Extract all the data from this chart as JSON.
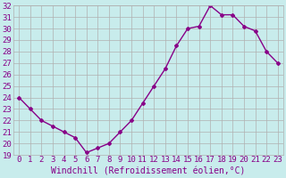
{
  "x": [
    0,
    1,
    2,
    3,
    4,
    5,
    6,
    7,
    8,
    9,
    10,
    11,
    12,
    13,
    14,
    15,
    16,
    17,
    18,
    19,
    20,
    21,
    22,
    23
  ],
  "y": [
    24,
    23,
    22,
    21.5,
    21,
    20.5,
    19.2,
    19.6,
    20.0,
    21.0,
    22.0,
    23.5,
    25.0,
    26.5,
    28.5,
    30.0,
    30.2,
    32,
    31.2,
    31.2,
    30.2,
    29.8,
    28,
    27
  ],
  "line_color": "#880088",
  "marker": "D",
  "marker_size": 2,
  "xlabel": "Windchill (Refroidissement éolien,°C)",
  "ylim": [
    19,
    32
  ],
  "xlim": [
    -0.5,
    23.5
  ],
  "yticks": [
    19,
    20,
    21,
    22,
    23,
    24,
    25,
    26,
    27,
    28,
    29,
    30,
    31,
    32
  ],
  "xticks": [
    0,
    1,
    2,
    3,
    4,
    5,
    6,
    7,
    8,
    9,
    10,
    11,
    12,
    13,
    14,
    15,
    16,
    17,
    18,
    19,
    20,
    21,
    22,
    23
  ],
  "background_color": "#c8ecec",
  "grid_color": "#b0b0b0",
  "tick_label_color": "#880088",
  "xlabel_color": "#880088",
  "xlabel_fontsize": 7,
  "tick_fontsize": 6.5,
  "linewidth": 1.0
}
